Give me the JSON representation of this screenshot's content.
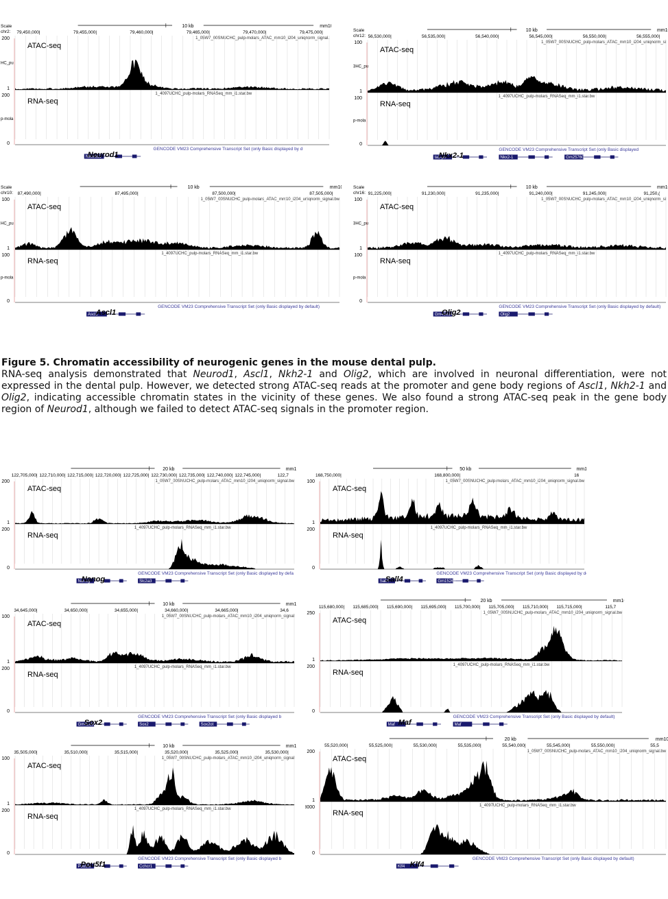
{
  "caption": {
    "title": "Figure 5. Chromatin accessibility of neurogenic genes in the mouse dental pulp.",
    "body_segments": [
      {
        "t": "RNA-seq analysis demonstrated that ",
        "i": false
      },
      {
        "t": "Neurod1",
        "i": true
      },
      {
        "t": ", ",
        "i": false
      },
      {
        "t": "Ascl1",
        "i": true
      },
      {
        "t": ", ",
        "i": false
      },
      {
        "t": "Nkh2-1",
        "i": true
      },
      {
        "t": " and ",
        "i": false
      },
      {
        "t": "Olig2",
        "i": true
      },
      {
        "t": ", which are involved in neuronal differentiation, were not expressed in the dental pulp. However, we detected strong ATAC-seq reads at the promoter and gene body regions of ",
        "i": false
      },
      {
        "t": "Ascl1",
        "i": true
      },
      {
        "t": ", ",
        "i": false
      },
      {
        "t": "Nkh2-1",
        "i": true
      },
      {
        "t": " and ",
        "i": false
      },
      {
        "t": "Olig2",
        "i": true
      },
      {
        "t": ", indicating accessible chromatin states in the vicinity of these genes. We also found a strong ATAC-seq peak in the gene body region of ",
        "i": false
      },
      {
        "t": "Neurod1",
        "i": true
      },
      {
        "t": ", although we failed to detect ATAC-seq signals in the promoter region.",
        "i": false
      }
    ]
  },
  "colors": {
    "signal": "#000000",
    "gene": "#1a1a6e",
    "annotation": "#3a3a9a",
    "gridline": "#d6d6d6",
    "track_text": "#333333",
    "axis_red": "#cc3333"
  },
  "panels": [
    {
      "gene_label": "Neurod1",
      "scale_text": "10 kb",
      "assembly_text": "mm10",
      "left_labels": [
        "Scale",
        "chr2:"
      ],
      "coords": [
        "79,450,000|",
        "79,455,000|",
        "79,460,000|",
        "79,465,000|",
        "79,470,000|",
        "79,475,000|"
      ],
      "atac_track_name": "1_05W7_00SNUCHC_pulp-molars_ATAC_mm10_i204_uniqnorm_signal.",
      "rna_track_name": "1_4097UCHC_pulp-molars_RNASeq_mm_i1.star.bw",
      "gencode_text": "GENCODE VM23 Comprehensive Transcript Set (only Basic displayed by d",
      "atac_max": "200",
      "atac_min": "1",
      "rna_max": "200",
      "rna_min": "0",
      "side_text_atac": "HC_pu",
      "side_text_rna": "p-mola",
      "atac_label": "ATAC-seq",
      "rna_label": "RNA-seq",
      "transcript_labels": [
        "Neurod1"
      ],
      "atac_peaks": [
        [
          0.38,
          0.55,
          0.018
        ],
        [
          0.4,
          0.15,
          0.04
        ],
        [
          0.25,
          0.06,
          0.05
        ],
        [
          0.75,
          0.05,
          0.05
        ]
      ],
      "atac_base": 0.03,
      "rna_peaks": []
    },
    {
      "gene_label": "Nkx2-1",
      "scale_text": "10 kb",
      "assembly_text": "mm10",
      "left_labels": [
        "Scale",
        "chr12:"
      ],
      "coords": [
        "56,530,000|",
        "56,535,000|",
        "56,540,000|",
        "56,545,000|",
        "56,550,000|",
        "56,555,000|"
      ],
      "atac_track_name": "1_05W7_00SNUCHC_pulp-molars_ATAC_mm10_i204_uniqnorm_si",
      "rna_track_name": "1_4097UCHC_pulp-molars_RNASeq_mm_i1.star.bw",
      "gencode_text": "GENCODE VM23 Comprehensive Transcript Set (only Basic displayed",
      "atac_max": "100",
      "atac_min": "1",
      "rna_max": "100",
      "rna_min": "0",
      "side_text_atac": "3HC_pu",
      "side_text_rna": "p-mola",
      "atac_label": "ATAC-seq",
      "rna_label": "RNA-seq",
      "transcript_labels": [
        "ta3-ps",
        "Nkx2-1",
        "Gm25760"
      ],
      "atac_peaks": [
        [
          0.07,
          0.2,
          0.03
        ],
        [
          0.3,
          0.22,
          0.05
        ],
        [
          0.45,
          0.2,
          0.04
        ],
        [
          0.6,
          0.18,
          0.05
        ],
        [
          0.55,
          0.25,
          0.02
        ],
        [
          0.85,
          0.08,
          0.06
        ]
      ],
      "atac_base": 0.06,
      "rna_peaks": [
        [
          0.06,
          0.12,
          0.006
        ]
      ]
    },
    {
      "gene_label": "Ascl1",
      "scale_text": "10 kb",
      "assembly_text": "mm10",
      "left_labels": [
        "Scale",
        "chr10:"
      ],
      "coords": [
        "87,490,000|",
        "87,495,000|",
        "87,500,000|",
        "87,505,000|"
      ],
      "atac_track_name": "1_05W7_00SNUCHC_pulp-molars_ATAC_mm10_i204_uniqnorm_signal.bw",
      "rna_track_name": "1_4097UCHC_pulp-molars_RNASeq_mm_i1.star.bw",
      "gencode_text": "GENCODE VM23 Comprehensive Transcript Set (only Basic displayed by default)",
      "atac_max": "100",
      "atac_min": "1",
      "rna_max": "100",
      "rna_min": "0",
      "side_text_atac": "HC_pu",
      "side_text_rna": "p-mola",
      "atac_label": "ATAC-seq",
      "rna_label": "RNA-seq",
      "transcript_labels": [
        "Ascl1"
      ],
      "atac_peaks": [
        [
          0.17,
          0.45,
          0.02
        ],
        [
          0.04,
          0.12,
          0.02
        ],
        [
          0.28,
          0.15,
          0.03
        ],
        [
          0.38,
          0.2,
          0.05
        ],
        [
          0.5,
          0.12,
          0.04
        ],
        [
          0.72,
          0.08,
          0.05
        ],
        [
          0.93,
          0.4,
          0.015
        ]
      ],
      "atac_base": 0.04,
      "rna_peaks": []
    },
    {
      "gene_label": "Olig2",
      "scale_text": "10 kb",
      "assembly_text": "mm10",
      "left_labels": [
        "Scale",
        "chr16:"
      ],
      "coords": [
        "91,225,000|",
        "91,230,000|",
        "91,235,000|",
        "91,240,000|",
        "91,245,000|",
        "91,250,("
      ],
      "atac_track_name": "1_05W7_00SNUCHC_pulp-molars_ATAC_mm10_i204_uniqnorm_si",
      "rna_track_name": "1_4097UCHC_pulp-molars_RNASeq_mm_i1.star.bw",
      "gencode_text": "GENCODE VM23 Comprehensive Transcript Set (only Basic displayed by default)",
      "atac_max": "100",
      "atac_min": "1",
      "rna_max": "100",
      "rna_min": "0",
      "side_text_atac": "3HC_pu",
      "side_text_rna": "p-mola",
      "atac_label": "ATAC-seq",
      "rna_label": "RNA-seq",
      "transcript_labels": [
        "Gm49614",
        "Olig2"
      ],
      "atac_peaks": [
        [
          0.26,
          0.25,
          0.03
        ],
        [
          0.15,
          0.12,
          0.04
        ],
        [
          0.38,
          0.1,
          0.05
        ],
        [
          0.6,
          0.08,
          0.06
        ],
        [
          0.85,
          0.06,
          0.06
        ]
      ],
      "atac_base": 0.05,
      "rna_peaks": []
    },
    {
      "gene_label": "Nanog",
      "scale_text": "20 kb",
      "assembly_text": "mm10",
      "left_labels": [],
      "coords": [
        "122,705,000|",
        "122,710,000|",
        "122,715,000|",
        "122,720,000|",
        "122,725,000|",
        "122,730,000|",
        "122,735,000|",
        "122,740,000|",
        "122,745,000|",
        "122,7"
      ],
      "atac_track_name": "1_05W7_00SNUCHC_pulp-molars_ATAC_mm10_i204_uniqnorm_signal.bw",
      "rna_track_name": "1_4097UCHC_pulp-molars_RNASeq_mm_i1.star.bw",
      "gencode_text": "GENCODE VM23 Comprehensive Transcript Set (only Basic displayed by defa",
      "atac_max": "200",
      "atac_min": "1",
      "rna_max": "200",
      "rna_min": "0",
      "side_text_atac": "",
      "side_text_rna": "",
      "atac_label": "ATAC-seq",
      "rna_label": "RNA-seq",
      "transcript_labels": [
        "Nanog",
        "Slc2a3"
      ],
      "atac_peaks": [
        [
          0.06,
          0.35,
          0.01
        ],
        [
          0.3,
          0.15,
          0.015
        ],
        [
          0.52,
          0.08,
          0.04
        ],
        [
          0.85,
          0.25,
          0.04
        ],
        [
          0.65,
          0.1,
          0.05
        ]
      ],
      "atac_base": 0.02,
      "rna_peaks": [
        [
          0.59,
          0.7,
          0.015
        ],
        [
          0.63,
          0.35,
          0.03
        ],
        [
          0.72,
          0.15,
          0.04
        ],
        [
          0.8,
          0.08,
          0.04
        ]
      ]
    },
    {
      "gene_label": "Sall4",
      "scale_text": "50 kb",
      "assembly_text": "mm10",
      "left_labels": [],
      "coords": [
        "168,750,000|",
        "168,800,000|",
        "16"
      ],
      "atac_track_name": "1_05W7_00SNUCHC_pulp-molars_ATAC_mm10_i204_uniqnorm_signal.bw",
      "rna_track_name": "1_4097UCHC_pulp-molars_RNASeq_mm_i1.star.bw",
      "gencode_text": "GENCODE VM23 Comprehensive Transcript Set (only Basic displayed by defa",
      "atac_max": "100",
      "atac_min": "1",
      "rna_max": "200",
      "rna_min": "0",
      "side_text_atac": "",
      "side_text_rna": "",
      "atac_label": "ATAC-seq",
      "rna_label": "RNA-seq",
      "transcript_labels": [
        "Sall4",
        "Gm15261"
      ],
      "atac_peaks": [
        [
          0.23,
          0.75,
          0.01
        ],
        [
          0.35,
          0.5,
          0.01
        ],
        [
          0.45,
          0.35,
          0.01
        ],
        [
          0.58,
          0.45,
          0.012
        ],
        [
          0.72,
          0.3,
          0.012
        ],
        [
          0.88,
          0.25,
          0.01
        ],
        [
          0.5,
          0.15,
          0.2
        ]
      ],
      "atac_base": 0.12,
      "rna_peaks": [
        [
          0.23,
          0.85,
          0.004
        ],
        [
          0.3,
          0.08,
          0.01
        ],
        [
          0.45,
          0.06,
          0.02
        ],
        [
          0.6,
          0.12,
          0.01
        ]
      ]
    },
    {
      "gene_label": "Sox2",
      "scale_text": "10 kb",
      "assembly_text": "mm10",
      "left_labels": [],
      "coords": [
        "34,645,000|",
        "34,650,000|",
        "34,655,000|",
        "34,660,000|",
        "34,665,000|",
        "34,6"
      ],
      "atac_track_name": "1_05W7_00SNUCHC_pulp-molars_ATAC_mm10_i204_uniqnorm_signal",
      "rna_track_name": "1_4097UCHC_pulp-molars_RNASeq_mm_i1.star.bw",
      "gencode_text": "GENCODE VM23 Comprehensive Transcript Set (only Basic displayed b",
      "atac_max": "100",
      "atac_min": "1",
      "rna_max": "200",
      "rna_min": "0",
      "side_text_atac": "",
      "side_text_rna": "",
      "atac_label": "ATAC-seq",
      "rna_label": "RNA-seq",
      "transcript_labels": [
        "Gm42692",
        "Sox2",
        "Sox2ot"
      ],
      "atac_peaks": [
        [
          0.35,
          0.2,
          0.02
        ],
        [
          0.42,
          0.25,
          0.04
        ],
        [
          0.08,
          0.15,
          0.03
        ],
        [
          0.2,
          0.1,
          0.04
        ],
        [
          0.6,
          0.08,
          0.05
        ],
        [
          0.85,
          0.18,
          0.03
        ]
      ],
      "atac_base": 0.04,
      "rna_peaks": []
    },
    {
      "gene_label": "Maf",
      "scale_text": "20 kb",
      "assembly_text": "mm10",
      "left_labels": [],
      "coords": [
        "115,680,000|",
        "115,685,000|",
        "115,690,000|",
        "115,695,000|",
        "115,700,000|",
        "115,705,000|",
        "115,710,000|",
        "115,715,000|",
        "115,7"
      ],
      "atac_track_name": "1_05W7_00SNUCHC_pulp-molars_ATAC_mm10_i204_uniqnorm_signal.bw",
      "rna_track_name": "1_4097UCHC_pulp-molars_RNASeq_mm_i1.star.bw",
      "gencode_text": "GENCODE VM23 Comprehensive Transcript Set (only Basic displayed by default)",
      "atac_max": "250",
      "atac_min": "1",
      "rna_max": "200",
      "rna_min": "0",
      "side_text_atac": "",
      "side_text_rna": "",
      "atac_label": "ATAC-seq",
      "rna_label": "RNA-seq",
      "transcript_labels": [
        "Maf",
        "Maf"
      ],
      "atac_peaks": [
        [
          0.78,
          0.7,
          0.015
        ],
        [
          0.74,
          0.3,
          0.02
        ],
        [
          0.8,
          0.3,
          0.02
        ],
        [
          0.3,
          0.05,
          0.1
        ],
        [
          0.55,
          0.06,
          0.1
        ]
      ],
      "atac_base": 0.02,
      "rna_peaks": [
        [
          0.24,
          0.45,
          0.015
        ],
        [
          0.42,
          0.12,
          0.005
        ],
        [
          0.7,
          0.5,
          0.02
        ],
        [
          0.75,
          0.6,
          0.02
        ],
        [
          0.66,
          0.2,
          0.02
        ]
      ]
    },
    {
      "gene_label": "Pou5f1",
      "scale_text": "10 kb",
      "assembly_text": "mm10",
      "left_labels": [],
      "coords": [
        "35,505,000|",
        "35,510,000|",
        "35,515,000|",
        "35,520,000|",
        "35,525,000|",
        "35,530,000|"
      ],
      "atac_track_name": "1_05W7_00SNUCHC_pulp-molars_ATAC_mm10_i204_uniqnorm_signal",
      "rna_track_name": "1_4097UCHC_pulp-molars_RNASeq_mm_i1.star.bw",
      "gencode_text": "GENCODE VM23 Comprehensive Transcript Set (only Basic displayed b",
      "atac_max": "100",
      "atac_min": "1",
      "rna_max": "200",
      "rna_min": "0",
      "side_text_atac": "",
      "side_text_rna": "",
      "atac_label": "ATAC-seq",
      "rna_label": "RNA-seq",
      "transcript_labels": [
        "Pou5f1",
        "Cchcr1"
      ],
      "atac_peaks": [
        [
          0.56,
          0.85,
          0.012
        ],
        [
          0.53,
          0.3,
          0.02
        ],
        [
          0.6,
          0.2,
          0.02
        ],
        [
          0.32,
          0.12,
          0.01
        ],
        [
          0.12,
          0.05,
          0.05
        ],
        [
          0.85,
          0.1,
          0.04
        ]
      ],
      "atac_base": 0.02,
      "rna_peaks": [
        [
          0.42,
          0.75,
          0.008
        ],
        [
          0.46,
          0.6,
          0.015
        ],
        [
          0.52,
          0.5,
          0.02
        ],
        [
          0.6,
          0.55,
          0.02
        ],
        [
          0.7,
          0.4,
          0.03
        ],
        [
          0.82,
          0.5,
          0.03
        ],
        [
          0.93,
          0.6,
          0.03
        ]
      ]
    },
    {
      "gene_label": "Klf4",
      "scale_text": "20 kb",
      "assembly_text": "mm10",
      "left_labels": [],
      "coords": [
        "55,520,000|",
        "55,525,000|",
        "55,530,000|",
        "55,535,000|",
        "55,540,000|",
        "55,545,000|",
        "55,550,000|",
        "55,5"
      ],
      "atac_track_name": "1_05W7_00SNUCHC_pulp-molars_ATAC_mm10_i204_uniqnorm_signal.bw",
      "rna_track_name": "1_4097UCHC_pulp-molars_RNASeq_mm_i1.star.bw",
      "gencode_text": "GENCODE VM23 Comprehensive Transcript Set (only Basic displayed by default)",
      "atac_max": "200",
      "atac_min": "1",
      "rna_max": "8000",
      "rna_min": "0",
      "side_text_atac": "",
      "side_text_rna": "",
      "atac_label": "ATAC-seq",
      "rna_label": "RNA-seq",
      "transcript_labels": [
        "Klf4"
      ],
      "atac_peaks": [
        [
          0.03,
          0.7,
          0.015
        ],
        [
          0.48,
          0.75,
          0.015
        ],
        [
          0.45,
          0.45,
          0.02
        ],
        [
          0.3,
          0.25,
          0.02
        ],
        [
          0.4,
          0.15,
          0.03
        ],
        [
          0.22,
          0.1,
          0.03
        ],
        [
          0.73,
          0.2,
          0.015
        ],
        [
          0.7,
          0.1,
          0.03
        ]
      ],
      "atac_base": 0.04,
      "rna_peaks": [
        [
          0.33,
          0.75,
          0.015
        ],
        [
          0.37,
          0.5,
          0.02
        ],
        [
          0.42,
          0.3,
          0.02
        ],
        [
          0.45,
          0.15,
          0.02
        ]
      ]
    }
  ]
}
